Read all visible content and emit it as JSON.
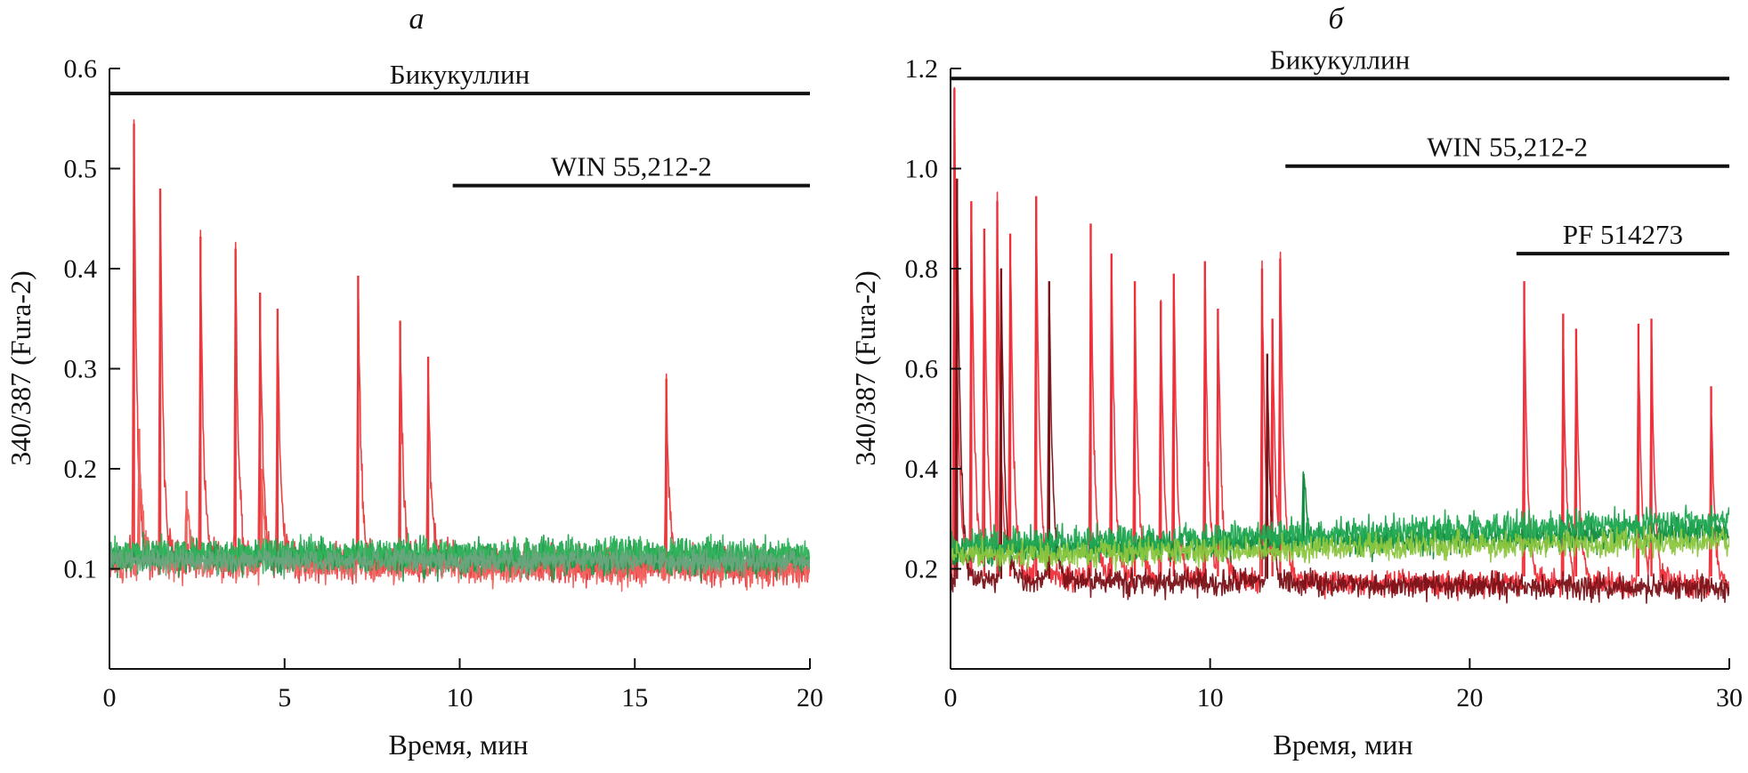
{
  "chart_data": [
    {
      "type": "line",
      "panel_label": "а",
      "xlabel": "Время, мин",
      "ylabel": "340/387 (Fura-2)",
      "xlim": [
        0,
        20
      ],
      "ylim": [
        0,
        0.6
      ],
      "xticks": [
        0,
        5,
        10,
        15,
        20
      ],
      "yticks": [
        0.1,
        0.2,
        0.3,
        0.4,
        0.5,
        0.6
      ],
      "ytick_labels": [
        "0.1",
        "0.2",
        "0.3",
        "0.4",
        "0.5",
        "0.6"
      ],
      "application_bars": [
        {
          "label": "Бикукуллин",
          "start": 0,
          "end": 20,
          "level": 0.575
        },
        {
          "label": "WIN 55,212-2",
          "start": 9.8,
          "end": 20,
          "level": 0.483
        }
      ],
      "series": [
        {
          "name": "red trace 1",
          "color": "#e8383b",
          "baseline": 0.11,
          "noise": 0.018,
          "trend": -0.008,
          "spikes": [
            [
              0.7,
              0.545
            ],
            [
              1.45,
              0.48
            ],
            [
              2.6,
              0.432
            ],
            [
              3.6,
              0.42
            ],
            [
              4.3,
              0.376
            ],
            [
              4.8,
              0.36
            ],
            [
              7.1,
              0.393
            ],
            [
              8.3,
              0.348
            ],
            [
              9.1,
              0.312
            ],
            [
              15.9,
              0.29
            ]
          ]
        },
        {
          "name": "red trace 2",
          "color": "#f0605d",
          "baseline": 0.105,
          "noise": 0.016,
          "trend": -0.006,
          "spikes": [
            [
              0.85,
              0.24
            ],
            [
              2.2,
              0.178
            ],
            [
              4.35,
              0.2
            ]
          ]
        },
        {
          "name": "green trace 1",
          "color": "#1c9a4c",
          "baseline": 0.112,
          "noise": 0.017,
          "trend": 0.0,
          "spikes": []
        },
        {
          "name": "green trace 2",
          "color": "#2fb35a",
          "baseline": 0.115,
          "noise": 0.015,
          "trend": 0.0,
          "spikes": []
        },
        {
          "name": "green trace 3",
          "color": "#6aa57e",
          "baseline": 0.108,
          "noise": 0.012,
          "trend": 0.0,
          "spikes": []
        }
      ]
    },
    {
      "type": "line",
      "panel_label": "б",
      "xlabel": "Время, мин",
      "ylabel": "340/387 (Fura-2)",
      "xlim": [
        0,
        30
      ],
      "ylim": [
        0,
        1.2
      ],
      "xticks": [
        0,
        10,
        20,
        30
      ],
      "yticks": [
        0.2,
        0.4,
        0.6,
        0.8,
        1.0,
        1.2
      ],
      "ytick_labels": [
        "0.2",
        "0.4",
        "0.6",
        "0.8",
        "1.0",
        "1.2"
      ],
      "application_bars": [
        {
          "label": "Бикукуллин",
          "start": 0,
          "end": 30,
          "level": 1.18
        },
        {
          "label": "WIN 55,212-2",
          "start": 12.9,
          "end": 30,
          "level": 1.005
        },
        {
          "label": "PF 514273",
          "start": 21.8,
          "end": 30,
          "level": 0.83
        }
      ],
      "series": [
        {
          "name": "red trace 1",
          "color": "#ee2f3a",
          "baseline": 0.185,
          "noise": 0.025,
          "trend": -0.02,
          "spikes": [
            [
              0.15,
              1.16
            ],
            [
              0.8,
              0.935
            ],
            [
              1.3,
              0.88
            ],
            [
              1.8,
              0.935
            ],
            [
              2.3,
              0.87
            ],
            [
              3.3,
              0.945
            ],
            [
              5.4,
              0.89
            ],
            [
              6.2,
              0.83
            ],
            [
              7.1,
              0.775
            ],
            [
              8.1,
              0.735
            ],
            [
              8.6,
              0.79
            ],
            [
              9.8,
              0.815
            ],
            [
              10.3,
              0.72
            ],
            [
              12.0,
              0.8
            ],
            [
              12.4,
              0.7
            ],
            [
              12.7,
              0.82
            ],
            [
              22.1,
              0.775
            ],
            [
              23.6,
              0.71
            ],
            [
              24.1,
              0.68
            ],
            [
              26.5,
              0.69
            ],
            [
              27.0,
              0.7
            ],
            [
              29.3,
              0.565
            ]
          ]
        },
        {
          "name": "dark red trace",
          "color": "#7a1218",
          "baseline": 0.18,
          "noise": 0.025,
          "trend": -0.02,
          "spikes": [
            [
              0.25,
              0.98
            ],
            [
              1.95,
              0.8
            ],
            [
              3.8,
              0.775
            ],
            [
              12.2,
              0.63
            ]
          ]
        },
        {
          "name": "green trace 1",
          "color": "#0f8a3c",
          "baseline": 0.235,
          "noise": 0.028,
          "trend": 0.04,
          "spikes": [
            [
              13.6,
              0.39
            ]
          ]
        },
        {
          "name": "green trace 2",
          "color": "#20a852",
          "baseline": 0.245,
          "noise": 0.03,
          "trend": 0.05,
          "spikes": []
        },
        {
          "name": "light green trace",
          "color": "#8cc63f",
          "baseline": 0.225,
          "noise": 0.025,
          "trend": 0.03,
          "spikes": []
        }
      ]
    }
  ]
}
